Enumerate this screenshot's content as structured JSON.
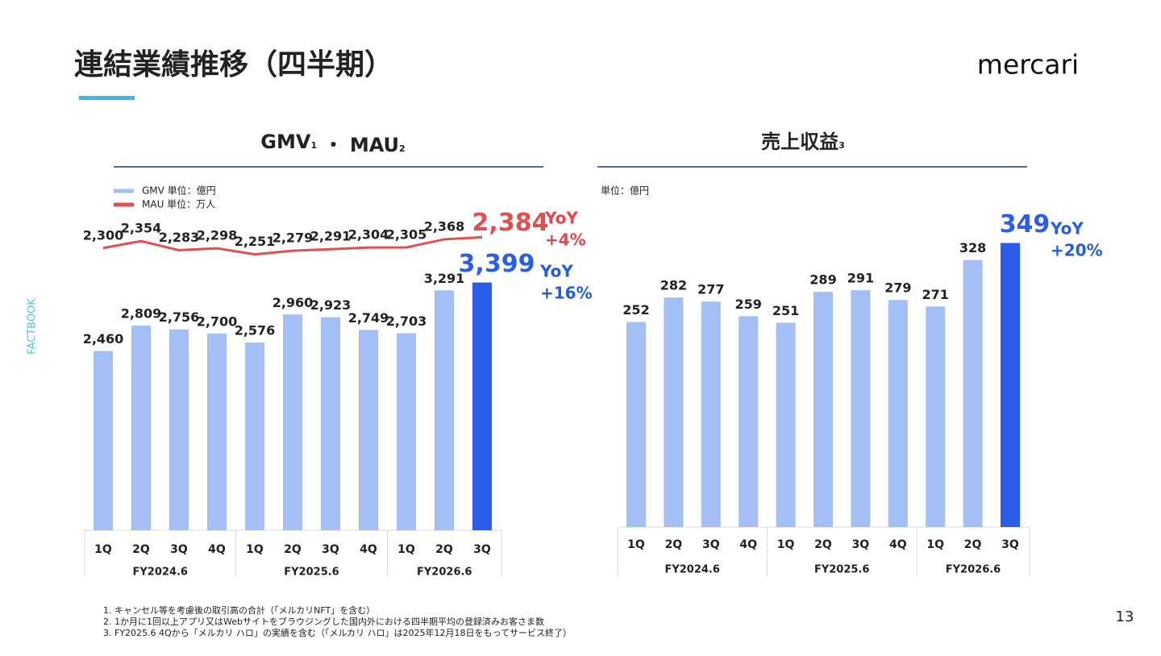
{
  "header": {
    "title": "連結業績推移（四半期）",
    "logo": "mercari",
    "side_label": "FACTBOOK",
    "page_number": "13"
  },
  "footnotes": [
    "1. キャンセル等を考慮後の取引高の合計（「メルカリNFT」を含む）",
    "2. 1か月に1回以上アプリ又はWebサイトをブラウジングした国内外における四半期平均の登録済みお客さま数",
    "3. FY2025.6 4Qから「メルカリ ハロ」の実績を含む（「メルカリ ハロ」は2025年12月18日をもってサービス終了）"
  ],
  "chart_data": [
    {
      "type": "combo",
      "title_parts": [
        {
          "text": "GMV",
          "note": "1"
        },
        {
          "text": " ・ MAU",
          "note": "2"
        }
      ],
      "category_groups": [
        {
          "label": "FY2024.6",
          "categories": [
            "1Q",
            "2Q",
            "3Q",
            "4Q"
          ]
        },
        {
          "label": "FY2025.6",
          "categories": [
            "1Q",
            "2Q",
            "3Q",
            "4Q"
          ]
        },
        {
          "label": "FY2026.6",
          "categories": [
            "1Q",
            "2Q",
            "3Q"
          ]
        }
      ],
      "series": [
        {
          "name": "GMV 単位：億円",
          "kind": "bar",
          "color": "#a4bff5",
          "colors": [
            "#a4bff5",
            "#a4bff5",
            "#a4bff5",
            "#a4bff5",
            "#a4bff5",
            "#a4bff5",
            "#a4bff5",
            "#a4bff5",
            "#a4bff5",
            "#a4bff5",
            "#2a5ee8"
          ],
          "values": [
            2460,
            2809,
            2756,
            2700,
            2576,
            2960,
            2923,
            2749,
            2703,
            3291,
            3399
          ],
          "value_labels": [
            "2,460",
            "2,809",
            "2,756",
            "2,700",
            "2,576",
            "2,960",
            "2,923",
            "2,749",
            "2,703",
            "3,291",
            "3,399"
          ]
        },
        {
          "name": "MAU 単位：万人",
          "kind": "line",
          "axis": "y2",
          "color": "#e05050",
          "values": [
            2300,
            2354,
            2283,
            2298,
            2251,
            2279,
            2291,
            2304,
            2305,
            2368,
            2384
          ],
          "value_labels": [
            "2,300",
            "2,354",
            "2,283",
            "2,298",
            "2,251",
            "2,279",
            "2,291",
            "2,304",
            "2,305",
            "2,368",
            "2,384"
          ]
        }
      ],
      "ylim": [
        0,
        4400
      ],
      "y2lim": [
        100,
        2600
      ],
      "annotations": [
        {
          "lines": [
            "YoY",
            "+4%"
          ],
          "color": "#e5454c"
        },
        {
          "lines": [
            "YoY",
            "+16%"
          ],
          "color": "#1f5fe0"
        }
      ]
    },
    {
      "type": "bar",
      "title_parts": [
        {
          "text": "売上収益",
          "note": "3"
        }
      ],
      "unit_label": "単位：億円",
      "category_groups": [
        {
          "label": "FY2024.6",
          "categories": [
            "1Q",
            "2Q",
            "3Q",
            "4Q"
          ]
        },
        {
          "label": "FY2025.6",
          "categories": [
            "1Q",
            "2Q",
            "3Q",
            "4Q"
          ]
        },
        {
          "label": "FY2026.6",
          "categories": [
            "1Q",
            "2Q",
            "3Q"
          ]
        }
      ],
      "series": [
        {
          "name": "売上収益",
          "kind": "bar",
          "color": "#a4bff5",
          "colors": [
            "#a4bff5",
            "#a4bff5",
            "#a4bff5",
            "#a4bff5",
            "#a4bff5",
            "#a4bff5",
            "#a4bff5",
            "#a4bff5",
            "#a4bff5",
            "#a4bff5",
            "#2a5ee8"
          ],
          "values": [
            252,
            282,
            277,
            259,
            251,
            289,
            291,
            279,
            271,
            328,
            349
          ]
        }
      ],
      "ylim": [
        0,
        400
      ],
      "annotations": [
        {
          "lines": [
            "YoY",
            "+20%"
          ],
          "color": "#1f5fe0"
        }
      ]
    }
  ]
}
